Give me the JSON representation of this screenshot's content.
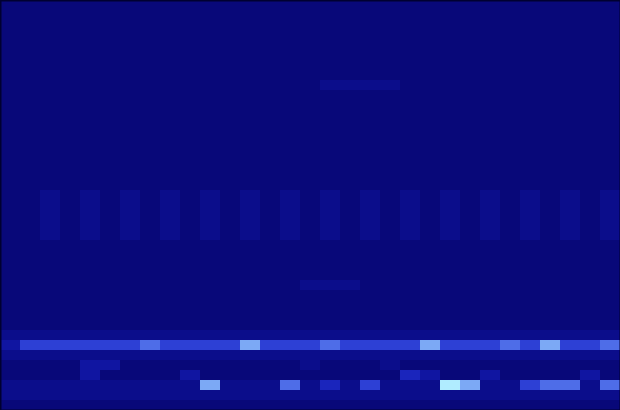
{
  "chart_data": {
    "type": "heatmap",
    "tick_labels": false,
    "zlim": [
      0,
      8
    ],
    "cells": [
      [
        1,
        1,
        1,
        1,
        1,
        1,
        1,
        1,
        1,
        1,
        1,
        1,
        1,
        1,
        1,
        1,
        1,
        1,
        1,
        1,
        1,
        1,
        1,
        1,
        1,
        1,
        1,
        1,
        1,
        1,
        1
      ],
      [
        1,
        1,
        1,
        1,
        1,
        1,
        1,
        1,
        1,
        1,
        1,
        1,
        1,
        1,
        1,
        1,
        1,
        1,
        1,
        1,
        1,
        1,
        1,
        1,
        1,
        1,
        1,
        1,
        1,
        1,
        1
      ],
      [
        1,
        1,
        1,
        1,
        1,
        1,
        1,
        1,
        1,
        1,
        1,
        1,
        1,
        1,
        1,
        1,
        1,
        1,
        1,
        1,
        1,
        1,
        1,
        1,
        1,
        1,
        1,
        1,
        1,
        1,
        1
      ],
      [
        1,
        1,
        1,
        1,
        1,
        1,
        1,
        1,
        1,
        1,
        1,
        1,
        1,
        1,
        1,
        1,
        1,
        1,
        1,
        1,
        1,
        1,
        1,
        1,
        1,
        1,
        1,
        1,
        1,
        1,
        1
      ],
      [
        1,
        1,
        1,
        1,
        1,
        1,
        1,
        1,
        1,
        1,
        1,
        1,
        1,
        1,
        1,
        1,
        1,
        1,
        1,
        1,
        1,
        1,
        1,
        1,
        1,
        1,
        1,
        1,
        1,
        1,
        1
      ],
      [
        1,
        1,
        1,
        1,
        1,
        1,
        1,
        1,
        1,
        1,
        1,
        1,
        1,
        1,
        1,
        1,
        1,
        1,
        1,
        1,
        1,
        1,
        1,
        1,
        1,
        1,
        1,
        1,
        1,
        1,
        1
      ],
      [
        1,
        1,
        1,
        1,
        1,
        1,
        1,
        1,
        1,
        1,
        1,
        1,
        1,
        1,
        1,
        1,
        1,
        1,
        1,
        1,
        1,
        1,
        1,
        1,
        1,
        1,
        1,
        1,
        1,
        1,
        1
      ],
      [
        1,
        1,
        1,
        1,
        1,
        1,
        1,
        1,
        1,
        1,
        1,
        1,
        1,
        1,
        1,
        1,
        1,
        1,
        1,
        1,
        1,
        1,
        1,
        1,
        1,
        1,
        1,
        1,
        1,
        1,
        1
      ],
      [
        1,
        1,
        1,
        1,
        1,
        1,
        1,
        1,
        1,
        1,
        1,
        1,
        1,
        1,
        1,
        1,
        2,
        2,
        2,
        2,
        1,
        1,
        1,
        1,
        1,
        1,
        1,
        1,
        1,
        1,
        1
      ],
      [
        1,
        1,
        1,
        1,
        1,
        1,
        1,
        1,
        1,
        1,
        1,
        1,
        1,
        1,
        1,
        1,
        1,
        1,
        1,
        1,
        1,
        1,
        1,
        1,
        1,
        1,
        1,
        1,
        1,
        1,
        1
      ],
      [
        1,
        1,
        1,
        1,
        1,
        1,
        1,
        1,
        1,
        1,
        1,
        1,
        1,
        1,
        1,
        1,
        1,
        1,
        1,
        1,
        1,
        1,
        1,
        1,
        1,
        1,
        1,
        1,
        1,
        1,
        1
      ],
      [
        1,
        1,
        1,
        1,
        1,
        1,
        1,
        1,
        1,
        1,
        1,
        1,
        1,
        1,
        1,
        1,
        1,
        1,
        1,
        1,
        1,
        1,
        1,
        1,
        1,
        1,
        1,
        1,
        1,
        1,
        1
      ],
      [
        1,
        1,
        1,
        1,
        1,
        1,
        1,
        1,
        1,
        1,
        1,
        1,
        1,
        1,
        1,
        1,
        1,
        1,
        1,
        1,
        1,
        1,
        1,
        1,
        1,
        1,
        1,
        1,
        1,
        1,
        1
      ],
      [
        1,
        1,
        1,
        1,
        1,
        1,
        1,
        1,
        1,
        1,
        1,
        1,
        1,
        1,
        1,
        1,
        1,
        1,
        1,
        1,
        1,
        1,
        1,
        1,
        1,
        1,
        1,
        1,
        1,
        1,
        1
      ],
      [
        1,
        1,
        1,
        1,
        1,
        1,
        1,
        1,
        1,
        1,
        1,
        1,
        1,
        1,
        1,
        1,
        1,
        1,
        1,
        1,
        1,
        1,
        1,
        1,
        1,
        1,
        1,
        1,
        1,
        1,
        1
      ],
      [
        1,
        1,
        1,
        1,
        1,
        1,
        1,
        1,
        1,
        1,
        1,
        1,
        1,
        1,
        1,
        1,
        1,
        1,
        1,
        1,
        1,
        1,
        1,
        1,
        1,
        1,
        1,
        1,
        1,
        1,
        1
      ],
      [
        1,
        1,
        1,
        1,
        1,
        1,
        1,
        1,
        1,
        1,
        1,
        1,
        1,
        1,
        1,
        1,
        1,
        1,
        1,
        1,
        1,
        1,
        1,
        1,
        1,
        1,
        1,
        1,
        1,
        1,
        1
      ],
      [
        1,
        1,
        1,
        1,
        1,
        1,
        1,
        1,
        1,
        1,
        1,
        1,
        1,
        1,
        1,
        1,
        1,
        1,
        1,
        1,
        1,
        1,
        1,
        1,
        1,
        1,
        1,
        1,
        1,
        1,
        1
      ],
      [
        1,
        1,
        1,
        1,
        1,
        1,
        1,
        1,
        1,
        1,
        1,
        1,
        1,
        1,
        1,
        1,
        1,
        1,
        1,
        1,
        1,
        1,
        1,
        1,
        1,
        1,
        1,
        1,
        1,
        1,
        1
      ],
      [
        1,
        1,
        2,
        1,
        2,
        1,
        2,
        1,
        2,
        1,
        2,
        1,
        2,
        1,
        2,
        1,
        2,
        1,
        2,
        1,
        2,
        1,
        2,
        1,
        2,
        1,
        2,
        1,
        2,
        1,
        2
      ],
      [
        1,
        1,
        2,
        1,
        2,
        1,
        2,
        1,
        2,
        1,
        2,
        1,
        2,
        1,
        2,
        1,
        2,
        1,
        2,
        1,
        2,
        1,
        2,
        1,
        2,
        1,
        2,
        1,
        2,
        1,
        2
      ],
      [
        1,
        1,
        2,
        1,
        2,
        1,
        2,
        1,
        2,
        1,
        2,
        1,
        2,
        1,
        2,
        1,
        2,
        1,
        2,
        1,
        2,
        1,
        2,
        1,
        2,
        1,
        2,
        1,
        2,
        1,
        2
      ],
      [
        1,
        1,
        2,
        1,
        2,
        1,
        2,
        1,
        2,
        1,
        2,
        1,
        2,
        1,
        2,
        1,
        2,
        1,
        2,
        1,
        2,
        1,
        2,
        1,
        2,
        1,
        2,
        1,
        2,
        1,
        2
      ],
      [
        1,
        1,
        2,
        1,
        2,
        1,
        2,
        1,
        2,
        1,
        2,
        1,
        2,
        1,
        2,
        1,
        2,
        1,
        2,
        1,
        2,
        1,
        2,
        1,
        2,
        1,
        2,
        1,
        2,
        1,
        2
      ],
      [
        1,
        1,
        1,
        1,
        1,
        1,
        1,
        1,
        1,
        1,
        1,
        1,
        1,
        1,
        1,
        1,
        1,
        1,
        1,
        1,
        1,
        1,
        1,
        1,
        1,
        1,
        1,
        1,
        1,
        1,
        1
      ],
      [
        1,
        1,
        1,
        1,
        1,
        1,
        1,
        1,
        1,
        1,
        1,
        1,
        1,
        1,
        1,
        1,
        1,
        1,
        1,
        1,
        1,
        1,
        1,
        1,
        1,
        1,
        1,
        1,
        1,
        1,
        1
      ],
      [
        1,
        1,
        1,
        1,
        1,
        1,
        1,
        1,
        1,
        1,
        1,
        1,
        1,
        1,
        1,
        1,
        1,
        1,
        1,
        1,
        1,
        1,
        1,
        1,
        1,
        1,
        1,
        1,
        1,
        1,
        1
      ],
      [
        1,
        1,
        1,
        1,
        1,
        1,
        1,
        1,
        1,
        1,
        1,
        1,
        1,
        1,
        1,
        1,
        1,
        1,
        1,
        1,
        1,
        1,
        1,
        1,
        1,
        1,
        1,
        1,
        1,
        1,
        1
      ],
      [
        1,
        1,
        1,
        1,
        1,
        1,
        1,
        1,
        1,
        1,
        1,
        1,
        1,
        1,
        1,
        2,
        2,
        2,
        1,
        1,
        1,
        1,
        1,
        1,
        1,
        1,
        1,
        1,
        1,
        1,
        1
      ],
      [
        1,
        1,
        1,
        1,
        1,
        1,
        1,
        1,
        1,
        1,
        1,
        1,
        1,
        1,
        1,
        1,
        1,
        1,
        1,
        1,
        1,
        1,
        1,
        1,
        1,
        1,
        1,
        1,
        1,
        1,
        1
      ],
      [
        1,
        1,
        1,
        1,
        1,
        1,
        1,
        1,
        1,
        1,
        1,
        1,
        1,
        1,
        1,
        1,
        1,
        1,
        1,
        1,
        1,
        1,
        1,
        1,
        1,
        1,
        1,
        1,
        1,
        1,
        1
      ],
      [
        1,
        1,
        1,
        1,
        1,
        1,
        1,
        1,
        1,
        1,
        1,
        1,
        1,
        1,
        1,
        1,
        1,
        1,
        1,
        1,
        1,
        1,
        1,
        1,
        1,
        1,
        1,
        1,
        1,
        1,
        1
      ],
      [
        1,
        1,
        1,
        1,
        1,
        1,
        1,
        1,
        1,
        1,
        1,
        1,
        1,
        1,
        1,
        1,
        1,
        1,
        1,
        1,
        1,
        1,
        1,
        1,
        1,
        1,
        1,
        1,
        1,
        1,
        1
      ],
      [
        2,
        2,
        2,
        2,
        2,
        2,
        2,
        2,
        2,
        2,
        2,
        2,
        2,
        2,
        2,
        2,
        2,
        2,
        2,
        2,
        2,
        2,
        2,
        2,
        2,
        2,
        2,
        2,
        2,
        2,
        2
      ],
      [
        3,
        5,
        5,
        5,
        5,
        5,
        5,
        6,
        5,
        5,
        5,
        5,
        7,
        5,
        5,
        5,
        6,
        5,
        5,
        5,
        5,
        7,
        5,
        5,
        5,
        6,
        5,
        7,
        5,
        5,
        6
      ],
      [
        2,
        2,
        2,
        2,
        2,
        2,
        2,
        2,
        2,
        2,
        2,
        2,
        2,
        2,
        2,
        2,
        2,
        2,
        2,
        2,
        2,
        2,
        2,
        2,
        2,
        2,
        2,
        2,
        2,
        2,
        2
      ],
      [
        1,
        1,
        1,
        1,
        3,
        3,
        1,
        1,
        1,
        1,
        1,
        1,
        1,
        1,
        1,
        2,
        1,
        1,
        1,
        2,
        1,
        1,
        1,
        1,
        1,
        1,
        1,
        1,
        1,
        1,
        1
      ],
      [
        1,
        1,
        1,
        1,
        3,
        1,
        1,
        1,
        1,
        3,
        1,
        1,
        1,
        1,
        1,
        1,
        1,
        1,
        1,
        1,
        4,
        3,
        1,
        1,
        3,
        1,
        1,
        1,
        1,
        3,
        1
      ],
      [
        2,
        2,
        2,
        2,
        2,
        2,
        2,
        2,
        2,
        2,
        7,
        2,
        2,
        2,
        6,
        2,
        4,
        2,
        5,
        2,
        2,
        2,
        8,
        7,
        2,
        2,
        5,
        6,
        6,
        2,
        6
      ],
      [
        2,
        2,
        2,
        2,
        2,
        2,
        2,
        2,
        2,
        2,
        2,
        2,
        2,
        2,
        2,
        2,
        2,
        2,
        2,
        2,
        2,
        2,
        2,
        2,
        2,
        2,
        2,
        2,
        2,
        2,
        2
      ],
      [
        1,
        1,
        1,
        1,
        1,
        1,
        1,
        1,
        1,
        1,
        1,
        1,
        1,
        1,
        1,
        1,
        1,
        1,
        1,
        1,
        1,
        1,
        1,
        1,
        1,
        1,
        1,
        1,
        1,
        1,
        1
      ]
    ]
  }
}
